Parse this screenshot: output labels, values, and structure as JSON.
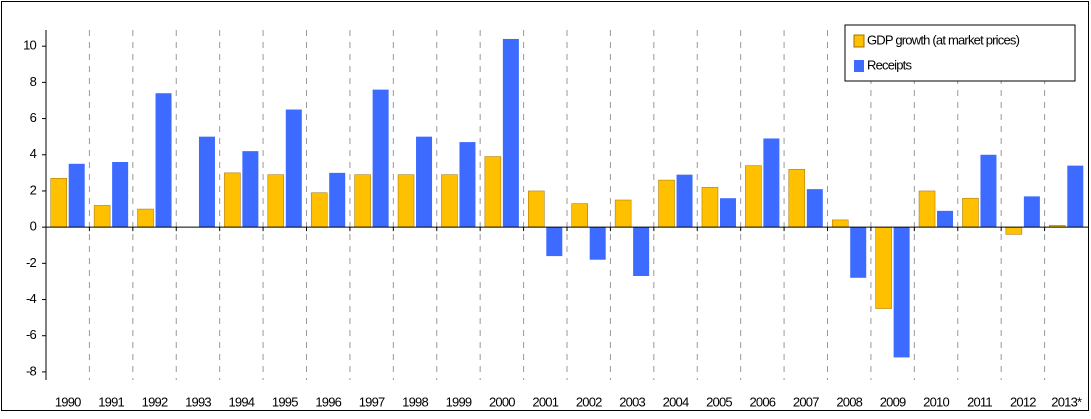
{
  "chart_data": {
    "type": "bar",
    "categories": [
      "1990",
      "1991",
      "1992",
      "1993",
      "1994",
      "1995",
      "1996",
      "1997",
      "1998",
      "1999",
      "2000",
      "2001",
      "2002",
      "2003",
      "2004",
      "2005",
      "2006",
      "2007",
      "2008",
      "2009",
      "2010",
      "2011",
      "2012",
      "2013*"
    ],
    "series": [
      {
        "name": "GDP growth (at market prices)",
        "color": "#ffc000",
        "values": [
          2.7,
          1.2,
          1.0,
          0,
          3.0,
          2.9,
          1.9,
          2.9,
          2.9,
          2.9,
          3.9,
          2.0,
          1.3,
          1.5,
          2.6,
          2.2,
          3.4,
          3.2,
          0.4,
          -4.5,
          2.0,
          1.6,
          -0.4,
          0.1
        ]
      },
      {
        "name": "Receipts",
        "color": "#3d6bff",
        "values": [
          3.5,
          3.6,
          7.4,
          5.0,
          4.2,
          6.5,
          3.0,
          7.6,
          5.0,
          4.7,
          10.4,
          -1.6,
          -1.8,
          -2.7,
          2.9,
          1.6,
          4.9,
          2.1,
          -2.8,
          -7.2,
          0.9,
          4.0,
          1.7,
          3.4
        ]
      }
    ],
    "ylim": [
      -9,
      12
    ],
    "yticks": [
      -8,
      -6,
      -4,
      -2,
      0,
      2,
      4,
      6,
      8,
      10
    ],
    "legend": "top-right"
  }
}
